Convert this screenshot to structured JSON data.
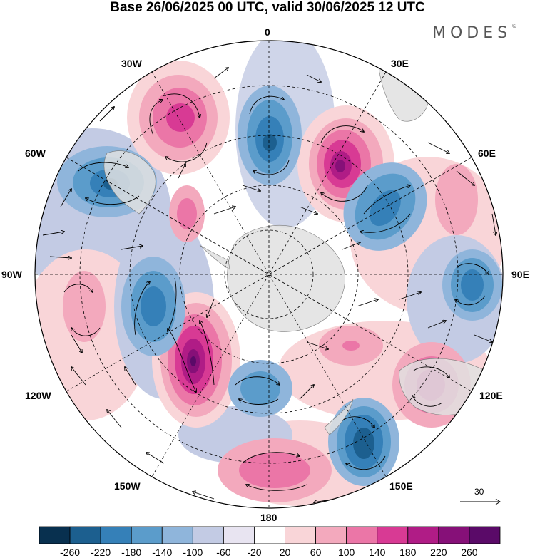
{
  "title": "Base 26/06/2025 00 UTC, valid 30/06/2025 12 UTC",
  "brand": "MODES",
  "brand_mark": "©",
  "longitude_labels": {
    "lon_0": "0",
    "lon_30e": "30E",
    "lon_60e": "60E",
    "lon_90e": "90E",
    "lon_120e": "120E",
    "lon_150e": "150E",
    "lon_180": "180",
    "lon_150w": "150W",
    "lon_120w": "120W",
    "lon_90w": "90W",
    "lon_60w": "60W",
    "lon_30w": "30W"
  },
  "reference_vector": "30",
  "colorbar": {
    "colors": [
      "#08304f",
      "#1c5f8f",
      "#3580b8",
      "#5b9ccb",
      "#8fb5db",
      "#c3cbe4",
      "#e8e4f1",
      "#ffffff",
      "#f9d5d8",
      "#f3a9bd",
      "#eb76a7",
      "#d83a94",
      "#b01c86",
      "#861078",
      "#5a0a68"
    ],
    "labels": [
      "-260",
      "-220",
      "-180",
      "-140",
      "-100",
      "-60",
      "-20",
      "20",
      "60",
      "100",
      "140",
      "180",
      "220",
      "260"
    ]
  },
  "map": {
    "projection": "south-polar-stereographic",
    "land_color": "#e0e0e0",
    "pos_centers": [
      {
        "id": "atl-30w",
        "value": 170
      },
      {
        "id": "atl-20e",
        "value": 250
      },
      {
        "id": "pac-110w",
        "value": 270
      },
      {
        "id": "ind-110e",
        "value": 200
      },
      {
        "id": "pac-170w",
        "value": 140
      },
      {
        "id": "ind-60e",
        "value": 100
      },
      {
        "id": "am-85w",
        "value": 110
      },
      {
        "id": "atl-40w-south",
        "value": 150
      },
      {
        "id": "ind-100e-south",
        "value": 120
      }
    ],
    "neg_centers": [
      {
        "id": "atl-0",
        "value": -200
      },
      {
        "id": "am-70w",
        "value": -180
      },
      {
        "id": "ind-45e",
        "value": -160
      },
      {
        "id": "ind-90e",
        "value": -170
      },
      {
        "id": "pac-105w",
        "value": -160
      },
      {
        "id": "pac-145e",
        "value": -240
      },
      {
        "id": "pac-175e",
        "value": -140
      }
    ]
  }
}
